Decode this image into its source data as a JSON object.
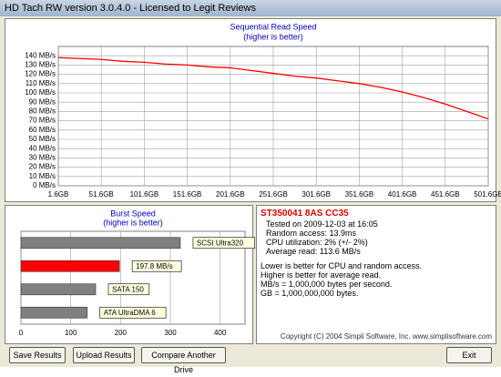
{
  "window": {
    "title": "HD Tach RW version 3.0.4.0 - Licensed to Legit Reviews"
  },
  "chart_data": [
    {
      "type": "line",
      "title": "Sequential Read Speed",
      "subtitle": "(higher is better)",
      "x": [
        1.6,
        26.6,
        51.6,
        76.6,
        101.6,
        126.6,
        151.6,
        176.6,
        201.6,
        226.6,
        251.6,
        276.6,
        301.6,
        326.6,
        351.6,
        376.6,
        401.6,
        426.6,
        451.6,
        476.6,
        501.6
      ],
      "series": [
        {
          "color": "#ff0000",
          "values": [
            138,
            137,
            136,
            134,
            133,
            131,
            130,
            128,
            127,
            124,
            121,
            118,
            116,
            113,
            110,
            106,
            101,
            95,
            88,
            80,
            72
          ]
        }
      ],
      "xlim": [
        1.6,
        501.6
      ],
      "xticks": [
        {
          "value": 1.6,
          "label": "1.6GB"
        },
        {
          "value": 51.6,
          "label": "51.6GB"
        },
        {
          "value": 101.6,
          "label": "101.6GB"
        },
        {
          "value": 151.6,
          "label": "151.6GB"
        },
        {
          "value": 201.6,
          "label": "201.6GB"
        },
        {
          "value": 251.6,
          "label": "251.6GB"
        },
        {
          "value": 301.6,
          "label": "301.6GB"
        },
        {
          "value": 351.6,
          "label": "351.6GB"
        },
        {
          "value": 401.6,
          "label": "401.6GB"
        },
        {
          "value": 451.6,
          "label": "451.6GB"
        },
        {
          "value": 501.6,
          "label": "501.6GB"
        }
      ],
      "ylim": [
        0,
        150
      ],
      "yticks": [
        {
          "value": 0,
          "label": "0 MB/s"
        },
        {
          "value": 10,
          "label": "10 MB/s"
        },
        {
          "value": 20,
          "label": "20 MB/s"
        },
        {
          "value": 30,
          "label": "30 MB/s"
        },
        {
          "value": 40,
          "label": "40 MB/s"
        },
        {
          "value": 50,
          "label": "50 MB/s"
        },
        {
          "value": 60,
          "label": "60 MB/s"
        },
        {
          "value": 70,
          "label": "70 MB/s"
        },
        {
          "value": 80,
          "label": "80 MB/s"
        },
        {
          "value": 90,
          "label": "90 MB/s"
        },
        {
          "value": 100,
          "label": "100 MB/s"
        },
        {
          "value": 110,
          "label": "110 MB/s"
        },
        {
          "value": 120,
          "label": "120 MB/s"
        },
        {
          "value": 130,
          "label": "130 MB/s"
        },
        {
          "value": 140,
          "label": "140 MB/s"
        }
      ],
      "grid": true
    },
    {
      "type": "barh",
      "title": "Burst Speed",
      "subtitle": "(higher is better)",
      "categories": [
        "SCSI Ultra320",
        null,
        "SATA 150",
        "ATA UltraDMA 6"
      ],
      "values": [
        320,
        197.8,
        150,
        133
      ],
      "value_labels": [
        null,
        "197.8 MB/s",
        null,
        null
      ],
      "colors": [
        "#808080",
        "#ff0000",
        "#808080",
        "#808080"
      ],
      "xlim": [
        0,
        450
      ],
      "xticks": [
        0,
        100,
        200,
        300,
        400
      ],
      "grid": true
    }
  ],
  "info": {
    "drive": "ST350041 8AS CC35",
    "details": [
      "Tested on 2009-12-03 at 16:05",
      "Random access: 13.9ms",
      "CPU utilization: 2% (+/- 2%)",
      "Average read: 113.6 MB/s"
    ],
    "notes": [
      "Lower is better for CPU and random access.",
      "Higher is better for average read.",
      "MB/s = 1,000,000 bytes per second.",
      "GB = 1,000,000,000 bytes."
    ],
    "copyright": "Copyright (C) 2004 Simpli Software, Inc. www.simplisoftware.com"
  },
  "buttons": [
    "Save Results",
    "Upload Results",
    "Compare Another Drive",
    "Exit"
  ]
}
